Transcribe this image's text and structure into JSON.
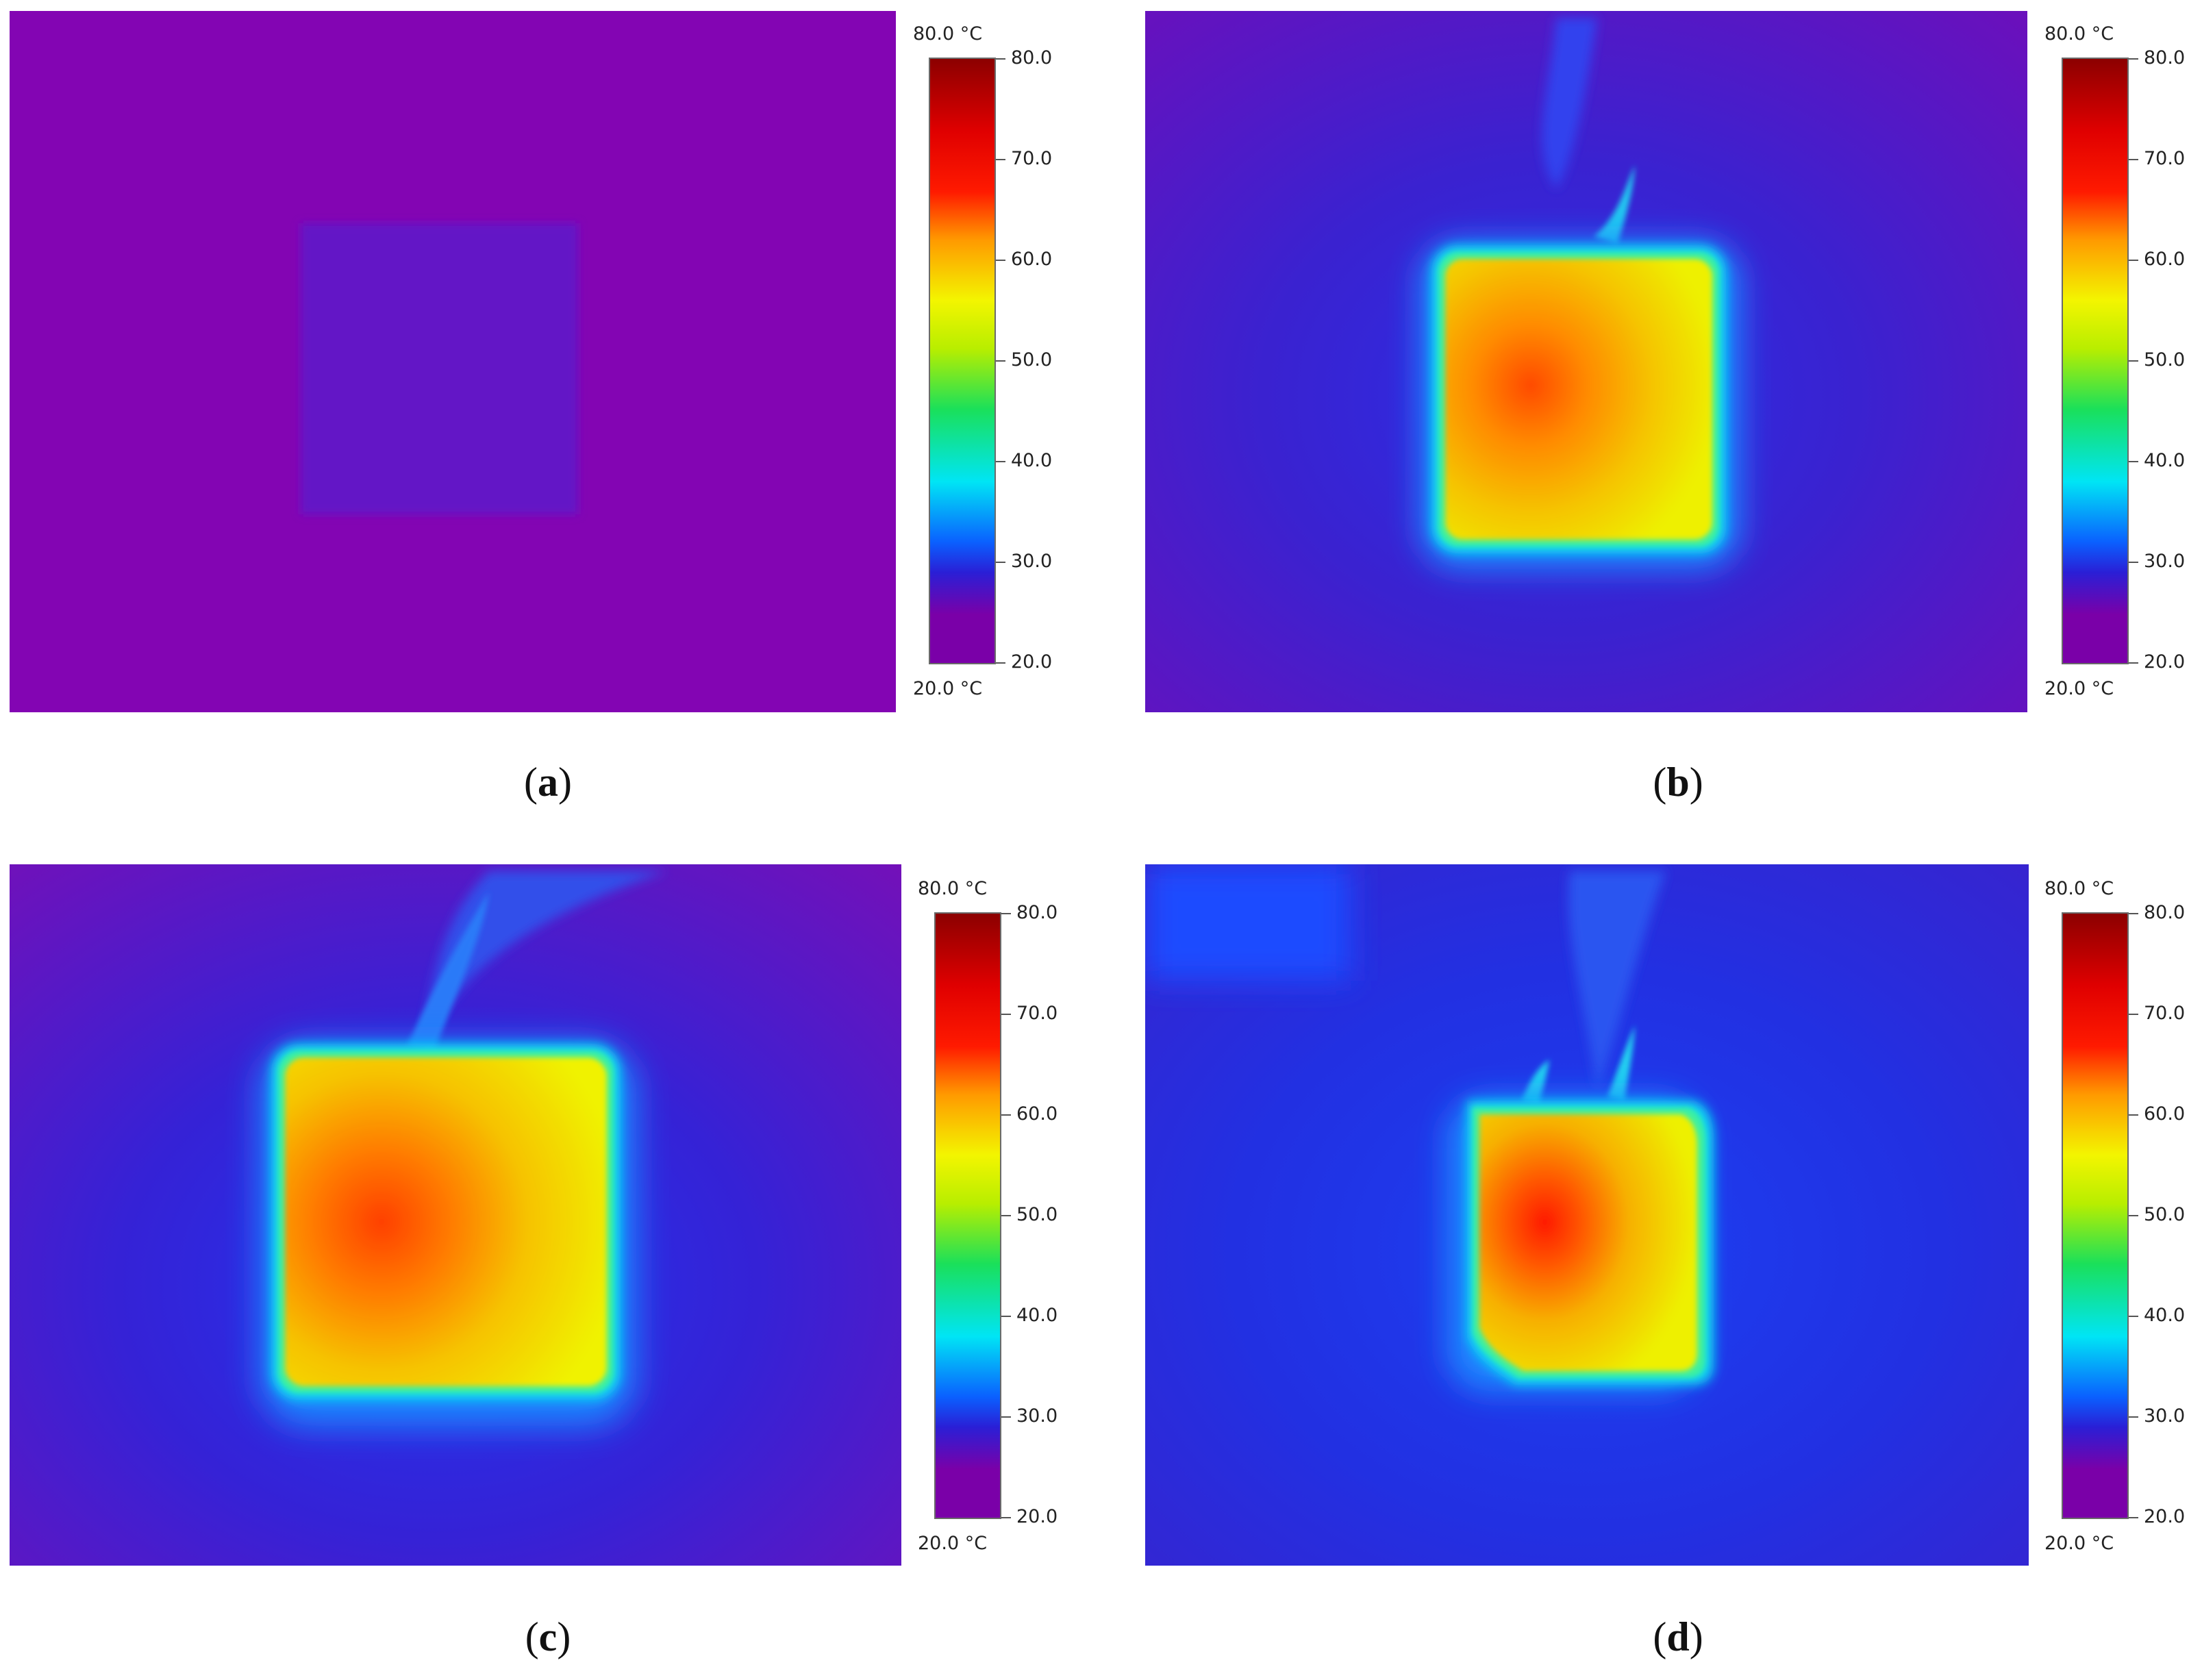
{
  "colors": {
    "background_purple": "#8305b3",
    "scale": [
      "#7a00a8",
      "#2a1fd6",
      "#00e5f5",
      "#1ae05a",
      "#f3f500",
      "#ff9a00",
      "#ff1a00",
      "#8c0000"
    ]
  },
  "panels": [
    {
      "id": "a",
      "scale_top_label": "80.0 °C",
      "scale_bottom_label": "20.0 °C",
      "ticks": [
        "80.0",
        "70.0",
        "60.0",
        "50.0",
        "40.0",
        "30.0",
        "20.0"
      ],
      "caption_open": "(",
      "caption_letter": "a",
      "caption_close": ")"
    },
    {
      "id": "b",
      "scale_top_label": "80.0 °C",
      "scale_bottom_label": "20.0 °C",
      "ticks": [
        "80.0",
        "70.0",
        "60.0",
        "50.0",
        "40.0",
        "30.0",
        "20.0"
      ],
      "caption_open": "(",
      "caption_letter": "b",
      "caption_close": ")"
    },
    {
      "id": "c",
      "scale_top_label": "80.0 °C",
      "scale_bottom_label": "20.0 °C",
      "ticks": [
        "80.0",
        "70.0",
        "60.0",
        "50.0",
        "40.0",
        "30.0",
        "20.0"
      ],
      "caption_open": "(",
      "caption_letter": "c",
      "caption_close": ")"
    },
    {
      "id": "d",
      "scale_top_label": "80.0 °C",
      "scale_bottom_label": "20.0 °C",
      "ticks": [
        "80.0",
        "70.0",
        "60.0",
        "50.0",
        "40.0",
        "30.0",
        "20.0"
      ],
      "caption_open": "(",
      "caption_letter": "d",
      "caption_close": ")"
    }
  ]
}
